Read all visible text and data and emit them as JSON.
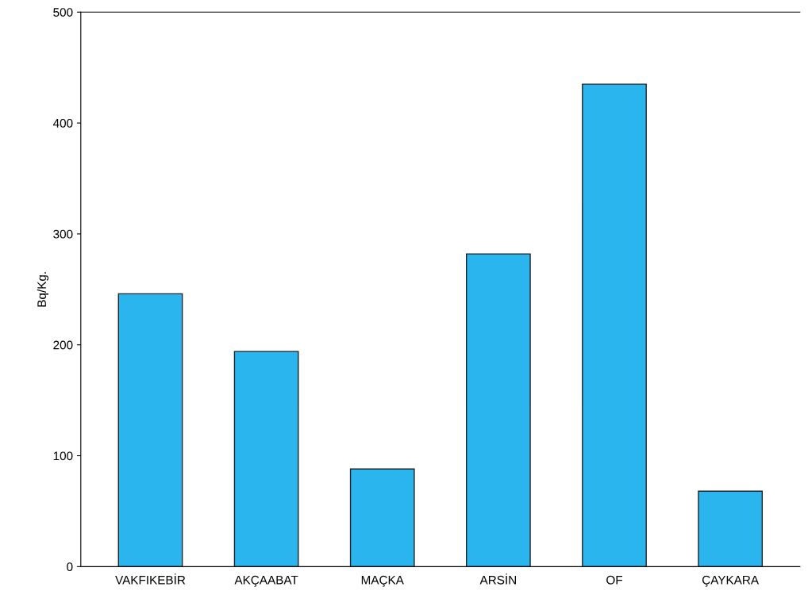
{
  "chart_data": {
    "type": "bar",
    "ylabel": "Bq/Kg.",
    "categories": [
      "VAKFIKEBİR",
      "AKÇAABAT",
      "MAÇKA",
      "ARSİN",
      "OF",
      "ÇAYKARA"
    ],
    "values": [
      246,
      194,
      88,
      282,
      435,
      68
    ],
    "color": "#2bb5ee",
    "ylim": [
      0,
      500
    ],
    "yticks": [
      0,
      100,
      200,
      300,
      400,
      500
    ],
    "grid": false
  }
}
